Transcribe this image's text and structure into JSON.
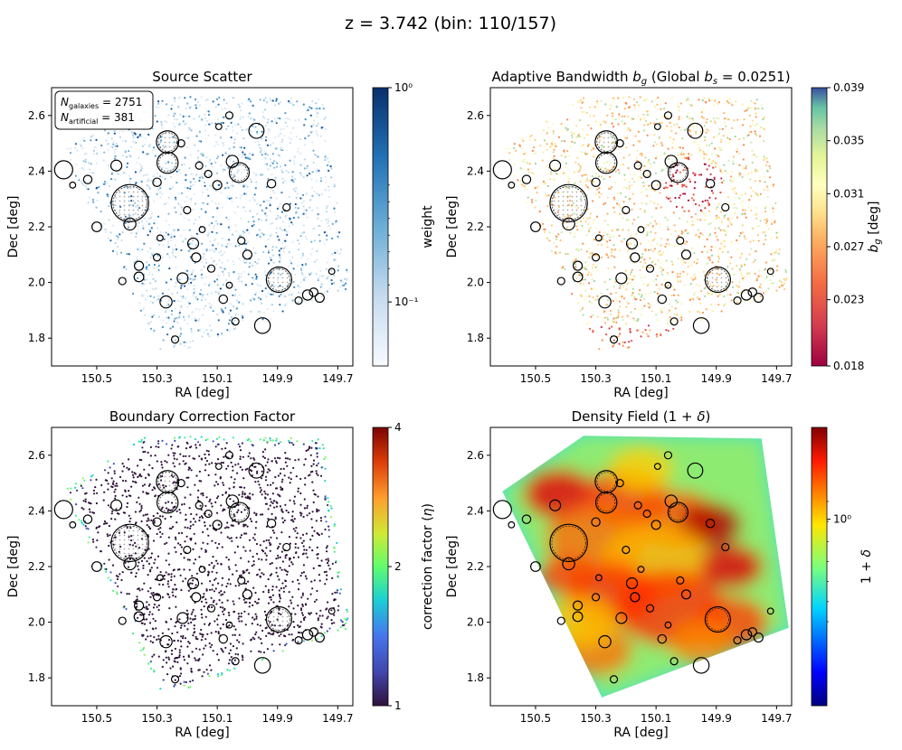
{
  "figure": {
    "suptitle": "z = 3.742 (bin: 110/157)"
  },
  "axes_common": {
    "xlabel": "RA [deg]",
    "ylabel": "Dec [deg]",
    "xlim": [
      150.65,
      149.65
    ],
    "ylim": [
      1.7,
      2.7
    ],
    "xticks": [
      150.5,
      150.3,
      150.1,
      149.9,
      149.7
    ],
    "xtick_labels": [
      "150.5",
      "150.3",
      "150.1",
      "149.9",
      "149.7"
    ],
    "yticks": [
      1.8,
      2.0,
      2.2,
      2.4,
      2.6
    ],
    "ytick_labels": [
      "1.8",
      "2.0",
      "2.2",
      "2.4",
      "2.6"
    ]
  },
  "chart_data": [
    {
      "type": "scatter",
      "title": "Source Scatter",
      "legend_box": {
        "line1": "N",
        "line1_sub": "galaxies",
        "line1_value": " = 2751",
        "line2": "N",
        "line2_sub": "artificial",
        "line2_value": " = 381"
      },
      "n_galaxies": 2751,
      "n_artificial": 381,
      "colorbar": {
        "label": "weight",
        "scale": "log",
        "ticks": [
          "10⁰",
          "10⁻¹"
        ],
        "range": [
          0.05,
          1.0
        ],
        "colormap": "Blues"
      }
    },
    {
      "type": "scatter",
      "title": "Adaptive Bandwidth b_g (Global b_s = 0.0251)",
      "global_bs": 0.0251,
      "colorbar": {
        "label": "b_g [deg]",
        "ticks": [
          "0.039",
          "0.035",
          "0.031",
          "0.027",
          "0.023",
          "0.018"
        ],
        "tick_values": [
          0.039,
          0.035,
          0.031,
          0.027,
          0.023,
          0.018
        ],
        "range": [
          0.018,
          0.039
        ],
        "colormap": "Spectral"
      }
    },
    {
      "type": "scatter",
      "title": "Boundary Correction Factor",
      "colorbar": {
        "label": "correction factor (η)",
        "ticks": [
          "4",
          "2",
          "1"
        ],
        "tick_values": [
          4,
          2,
          1
        ],
        "range": [
          1,
          4
        ],
        "colormap": "turbo"
      }
    },
    {
      "type": "heatmap",
      "title": "Density Field (1 + δ)",
      "colorbar": {
        "label": "1 + δ",
        "ticks": [
          "10⁰"
        ],
        "scale": "log",
        "colormap": "jet"
      }
    }
  ],
  "masks": [
    {
      "ra": 150.265,
      "dec": 2.505,
      "r": 0.037
    },
    {
      "ra": 150.265,
      "dec": 2.43,
      "r": 0.035
    },
    {
      "ra": 150.39,
      "dec": 2.285,
      "r": 0.062
    },
    {
      "ra": 150.61,
      "dec": 2.405,
      "r": 0.03
    },
    {
      "ra": 149.895,
      "dec": 2.01,
      "r": 0.042
    },
    {
      "ra": 150.027,
      "dec": 2.395,
      "r": 0.033
    },
    {
      "ra": 149.97,
      "dec": 2.545,
      "r": 0.025
    },
    {
      "ra": 149.95,
      "dec": 1.845,
      "r": 0.026
    },
    {
      "ra": 150.05,
      "dec": 2.435,
      "r": 0.02
    },
    {
      "ra": 150.39,
      "dec": 2.21,
      "r": 0.02
    },
    {
      "ra": 150.435,
      "dec": 2.42,
      "r": 0.018
    },
    {
      "ra": 150.18,
      "dec": 2.14,
      "r": 0.018
    },
    {
      "ra": 150.17,
      "dec": 2.09,
      "r": 0.015
    },
    {
      "ra": 150.215,
      "dec": 2.015,
      "r": 0.018
    },
    {
      "ra": 150.27,
      "dec": 1.93,
      "r": 0.02
    },
    {
      "ra": 150.36,
      "dec": 2.06,
      "r": 0.015
    },
    {
      "ra": 150.36,
      "dec": 2.02,
      "r": 0.016
    },
    {
      "ra": 150.415,
      "dec": 2.005,
      "r": 0.012
    },
    {
      "ra": 150.0,
      "dec": 2.1,
      "r": 0.015
    },
    {
      "ra": 150.1,
      "dec": 2.35,
      "r": 0.015
    },
    {
      "ra": 150.13,
      "dec": 2.39,
      "r": 0.012
    },
    {
      "ra": 149.92,
      "dec": 2.355,
      "r": 0.014
    },
    {
      "ra": 150.08,
      "dec": 1.94,
      "r": 0.014
    },
    {
      "ra": 149.8,
      "dec": 1.955,
      "r": 0.017
    },
    {
      "ra": 149.78,
      "dec": 1.965,
      "r": 0.014
    },
    {
      "ra": 149.76,
      "dec": 1.945,
      "r": 0.015
    },
    {
      "ra": 149.83,
      "dec": 1.935,
      "r": 0.012
    },
    {
      "ra": 150.53,
      "dec": 2.37,
      "r": 0.014
    },
    {
      "ra": 150.5,
      "dec": 2.2,
      "r": 0.016
    },
    {
      "ra": 150.3,
      "dec": 2.36,
      "r": 0.014
    },
    {
      "ra": 150.2,
      "dec": 2.26,
      "r": 0.012
    },
    {
      "ra": 150.16,
      "dec": 2.42,
      "r": 0.012
    },
    {
      "ra": 150.12,
      "dec": 2.05,
      "r": 0.012
    },
    {
      "ra": 150.06,
      "dec": 1.99,
      "r": 0.01
    },
    {
      "ra": 150.02,
      "dec": 2.15,
      "r": 0.012
    },
    {
      "ra": 149.87,
      "dec": 2.27,
      "r": 0.012
    },
    {
      "ra": 150.22,
      "dec": 2.5,
      "r": 0.012
    },
    {
      "ra": 150.095,
      "dec": 2.56,
      "r": 0.01
    },
    {
      "ra": 150.06,
      "dec": 2.6,
      "r": 0.012
    },
    {
      "ra": 150.3,
      "dec": 2.09,
      "r": 0.012
    },
    {
      "ra": 150.24,
      "dec": 1.795,
      "r": 0.012
    },
    {
      "ra": 150.04,
      "dec": 1.86,
      "r": 0.012
    },
    {
      "ra": 149.72,
      "dec": 2.04,
      "r": 0.01
    },
    {
      "ra": 150.15,
      "dec": 2.19,
      "r": 0.01
    },
    {
      "ra": 150.29,
      "dec": 2.16,
      "r": 0.01
    },
    {
      "ra": 150.58,
      "dec": 2.35,
      "r": 0.01
    }
  ]
}
